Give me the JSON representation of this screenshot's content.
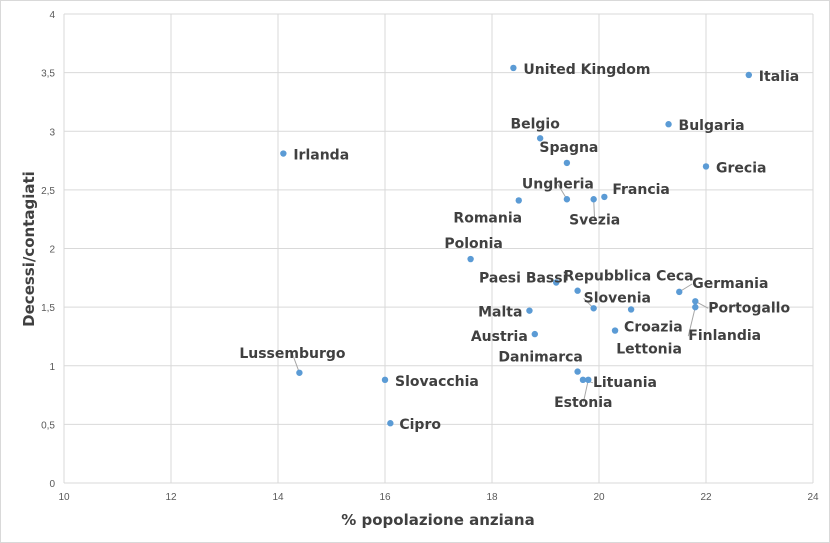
{
  "chart_data": {
    "type": "scatter",
    "title": "",
    "xlabel": "% popolazione anziana",
    "ylabel": "Decessi/contagiati",
    "xlim": [
      10,
      24
    ],
    "ylim": [
      0,
      4
    ],
    "x_ticks": [
      "10",
      "12",
      "14",
      "16",
      "18",
      "20",
      "22",
      "24"
    ],
    "y_ticks": [
      "0",
      "0,5",
      "1",
      "1,5",
      "2",
      "2,5",
      "3",
      "3,5",
      "4"
    ],
    "grid": true,
    "marker_color": "#5b9bd5",
    "points": [
      {
        "label": "Italia",
        "x": 22.8,
        "y": 3.48
      },
      {
        "label": "United Kingdom",
        "x": 18.4,
        "y": 3.54
      },
      {
        "label": "Bulgaria",
        "x": 21.3,
        "y": 3.06
      },
      {
        "label": "Belgio",
        "x": 18.9,
        "y": 2.94
      },
      {
        "label": "Irlanda",
        "x": 14.1,
        "y": 2.81
      },
      {
        "label": "Spagna",
        "x": 19.4,
        "y": 2.73
      },
      {
        "label": "Grecia",
        "x": 22.0,
        "y": 2.7
      },
      {
        "label": "Francia",
        "x": 20.1,
        "y": 2.44
      },
      {
        "label": "Ungheria",
        "x": 19.4,
        "y": 2.42
      },
      {
        "label": "Svezia",
        "x": 19.9,
        "y": 2.42
      },
      {
        "label": "Romania",
        "x": 18.5,
        "y": 2.41
      },
      {
        "label": "Polonia",
        "x": 17.6,
        "y": 1.91
      },
      {
        "label": "Paesi Bassi",
        "x": 19.2,
        "y": 1.71
      },
      {
        "label": "Repubblica Ceca",
        "x": 19.6,
        "y": 1.64
      },
      {
        "label": "Germania",
        "x": 21.5,
        "y": 1.63
      },
      {
        "label": "Portogallo",
        "x": 21.8,
        "y": 1.55
      },
      {
        "label": "Finlandia",
        "x": 21.8,
        "y": 1.5
      },
      {
        "label": "Slovenia",
        "x": 19.9,
        "y": 1.49
      },
      {
        "label": "Lettonia",
        "x": 20.6,
        "y": 1.48
      },
      {
        "label": "Malta",
        "x": 18.7,
        "y": 1.47
      },
      {
        "label": "Croazia",
        "x": 20.3,
        "y": 1.3
      },
      {
        "label": "Austria",
        "x": 18.8,
        "y": 1.27
      },
      {
        "label": "Danimarca",
        "x": 19.6,
        "y": 0.95
      },
      {
        "label": "Lussemburgo",
        "x": 14.4,
        "y": 0.94
      },
      {
        "label": "Lituania",
        "x": 19.7,
        "y": 0.88
      },
      {
        "label": "Estonia",
        "x": 19.8,
        "y": 0.88
      },
      {
        "label": "Slovacchia",
        "x": 16.0,
        "y": 0.88
      },
      {
        "label": "Cipro",
        "x": 16.1,
        "y": 0.51
      }
    ]
  }
}
